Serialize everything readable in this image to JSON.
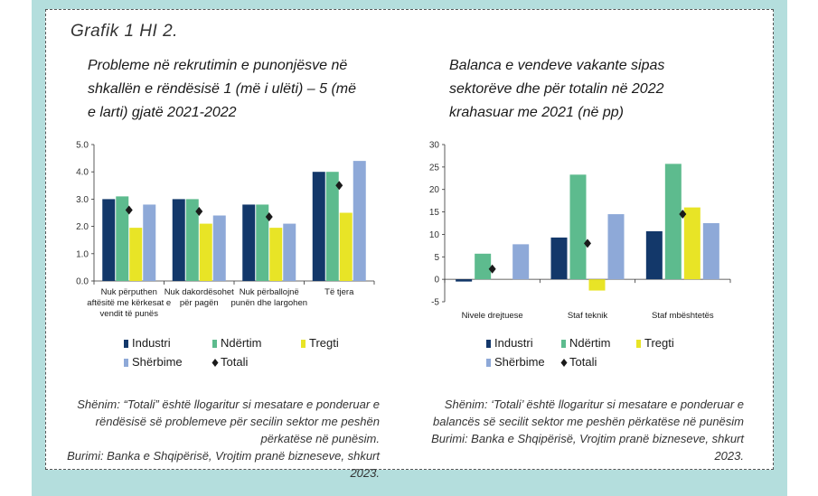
{
  "figure_label": "Grafik 1 HI 2.",
  "colors": {
    "industri": "#13386a",
    "ndertim": "#5dbb8e",
    "tregti": "#e8e426",
    "sherbime": "#8ea9d8",
    "totali": "#1a1a1a",
    "frame": "#b4dedd"
  },
  "left": {
    "title": "Probleme në rekrutimin e punonjësve në shkallën e rëndësisë 1 (më i ulëti) – 5 (më e larti) gjatë 2021-2022",
    "note": "Shënim: “Totali” është llogaritur si mesatare e ponderuar e rëndësisë së problemeve për secilin sektor me peshën përkatëse në punësim.",
    "source": "Burimi: Banka e Shqipërisë, Vrojtim pranë bizneseve, shkurt 2023.",
    "legend": [
      "Industri",
      "Ndërtim",
      "Tregti",
      "Shërbime",
      "Totali"
    ]
  },
  "right": {
    "title": "Balanca e vendeve vakante sipas sektorëve dhe për totalin në 2022 krahasuar me 2021 (në pp)",
    "note": "Shënim: ‘Totali’ është llogaritur si mesatare e ponderuar e balancës së secilit sektor me peshën përkatëse në punësim",
    "source": "Burimi: Banka e Shqipërisë, Vrojtim pranë bizneseve, shkurt 2023.",
    "legend": [
      "Industri",
      "Ndërtim",
      "Tregti",
      "Shërbime",
      "Totali"
    ]
  },
  "chart_data": [
    {
      "type": "bar",
      "title": "Probleme në rekrutimin e punonjësve në shkallën e rëndësisë 1 (më i ulëti) – 5 (më e larti) gjatë 2021-2022",
      "categories": [
        [
          "Nuk përputhen",
          "aftësitë me kërkesat e",
          "vendit të punës"
        ],
        [
          "Nuk dakordësohet",
          "për pagën"
        ],
        [
          "Nuk përballojnë",
          "punën dhe largohen"
        ],
        [
          "Të tjera"
        ]
      ],
      "series": [
        {
          "name": "Industri",
          "values": [
            3.0,
            3.0,
            2.8,
            4.0
          ]
        },
        {
          "name": "Ndërtim",
          "values": [
            3.1,
            3.0,
            2.8,
            4.0
          ]
        },
        {
          "name": "Tregti",
          "values": [
            1.95,
            2.1,
            1.95,
            2.5
          ]
        },
        {
          "name": "Shërbime",
          "values": [
            2.8,
            2.4,
            2.1,
            4.4
          ]
        }
      ],
      "totali": [
        2.6,
        2.55,
        2.35,
        3.5
      ],
      "yticks": [
        "0.0",
        "1.0",
        "2.0",
        "3.0",
        "4.0",
        "5.0"
      ],
      "ylim": [
        0,
        5
      ]
    },
    {
      "type": "bar",
      "title": "Balanca e vendeve vakante sipas sektorëve dhe për totalin në 2022 krahasuar me 2021 (në pp)",
      "categories": [
        [
          "Nivele drejtuese"
        ],
        [
          "Staf teknik"
        ],
        [
          "Staf mbështetës"
        ]
      ],
      "series": [
        {
          "name": "Industri",
          "values": [
            -0.5,
            9.3,
            10.7
          ]
        },
        {
          "name": "Ndërtim",
          "values": [
            5.7,
            23.3,
            25.7
          ]
        },
        {
          "name": "Tregti",
          "values": [
            0.0,
            -2.5,
            16.0
          ]
        },
        {
          "name": "Shërbime",
          "values": [
            7.8,
            14.5,
            12.5
          ]
        }
      ],
      "totali": [
        2.3,
        8.0,
        14.5
      ],
      "yticks": [
        "-5",
        "0",
        "5",
        "10",
        "15",
        "20",
        "25",
        "30"
      ],
      "ylim": [
        -5,
        30
      ]
    }
  ]
}
